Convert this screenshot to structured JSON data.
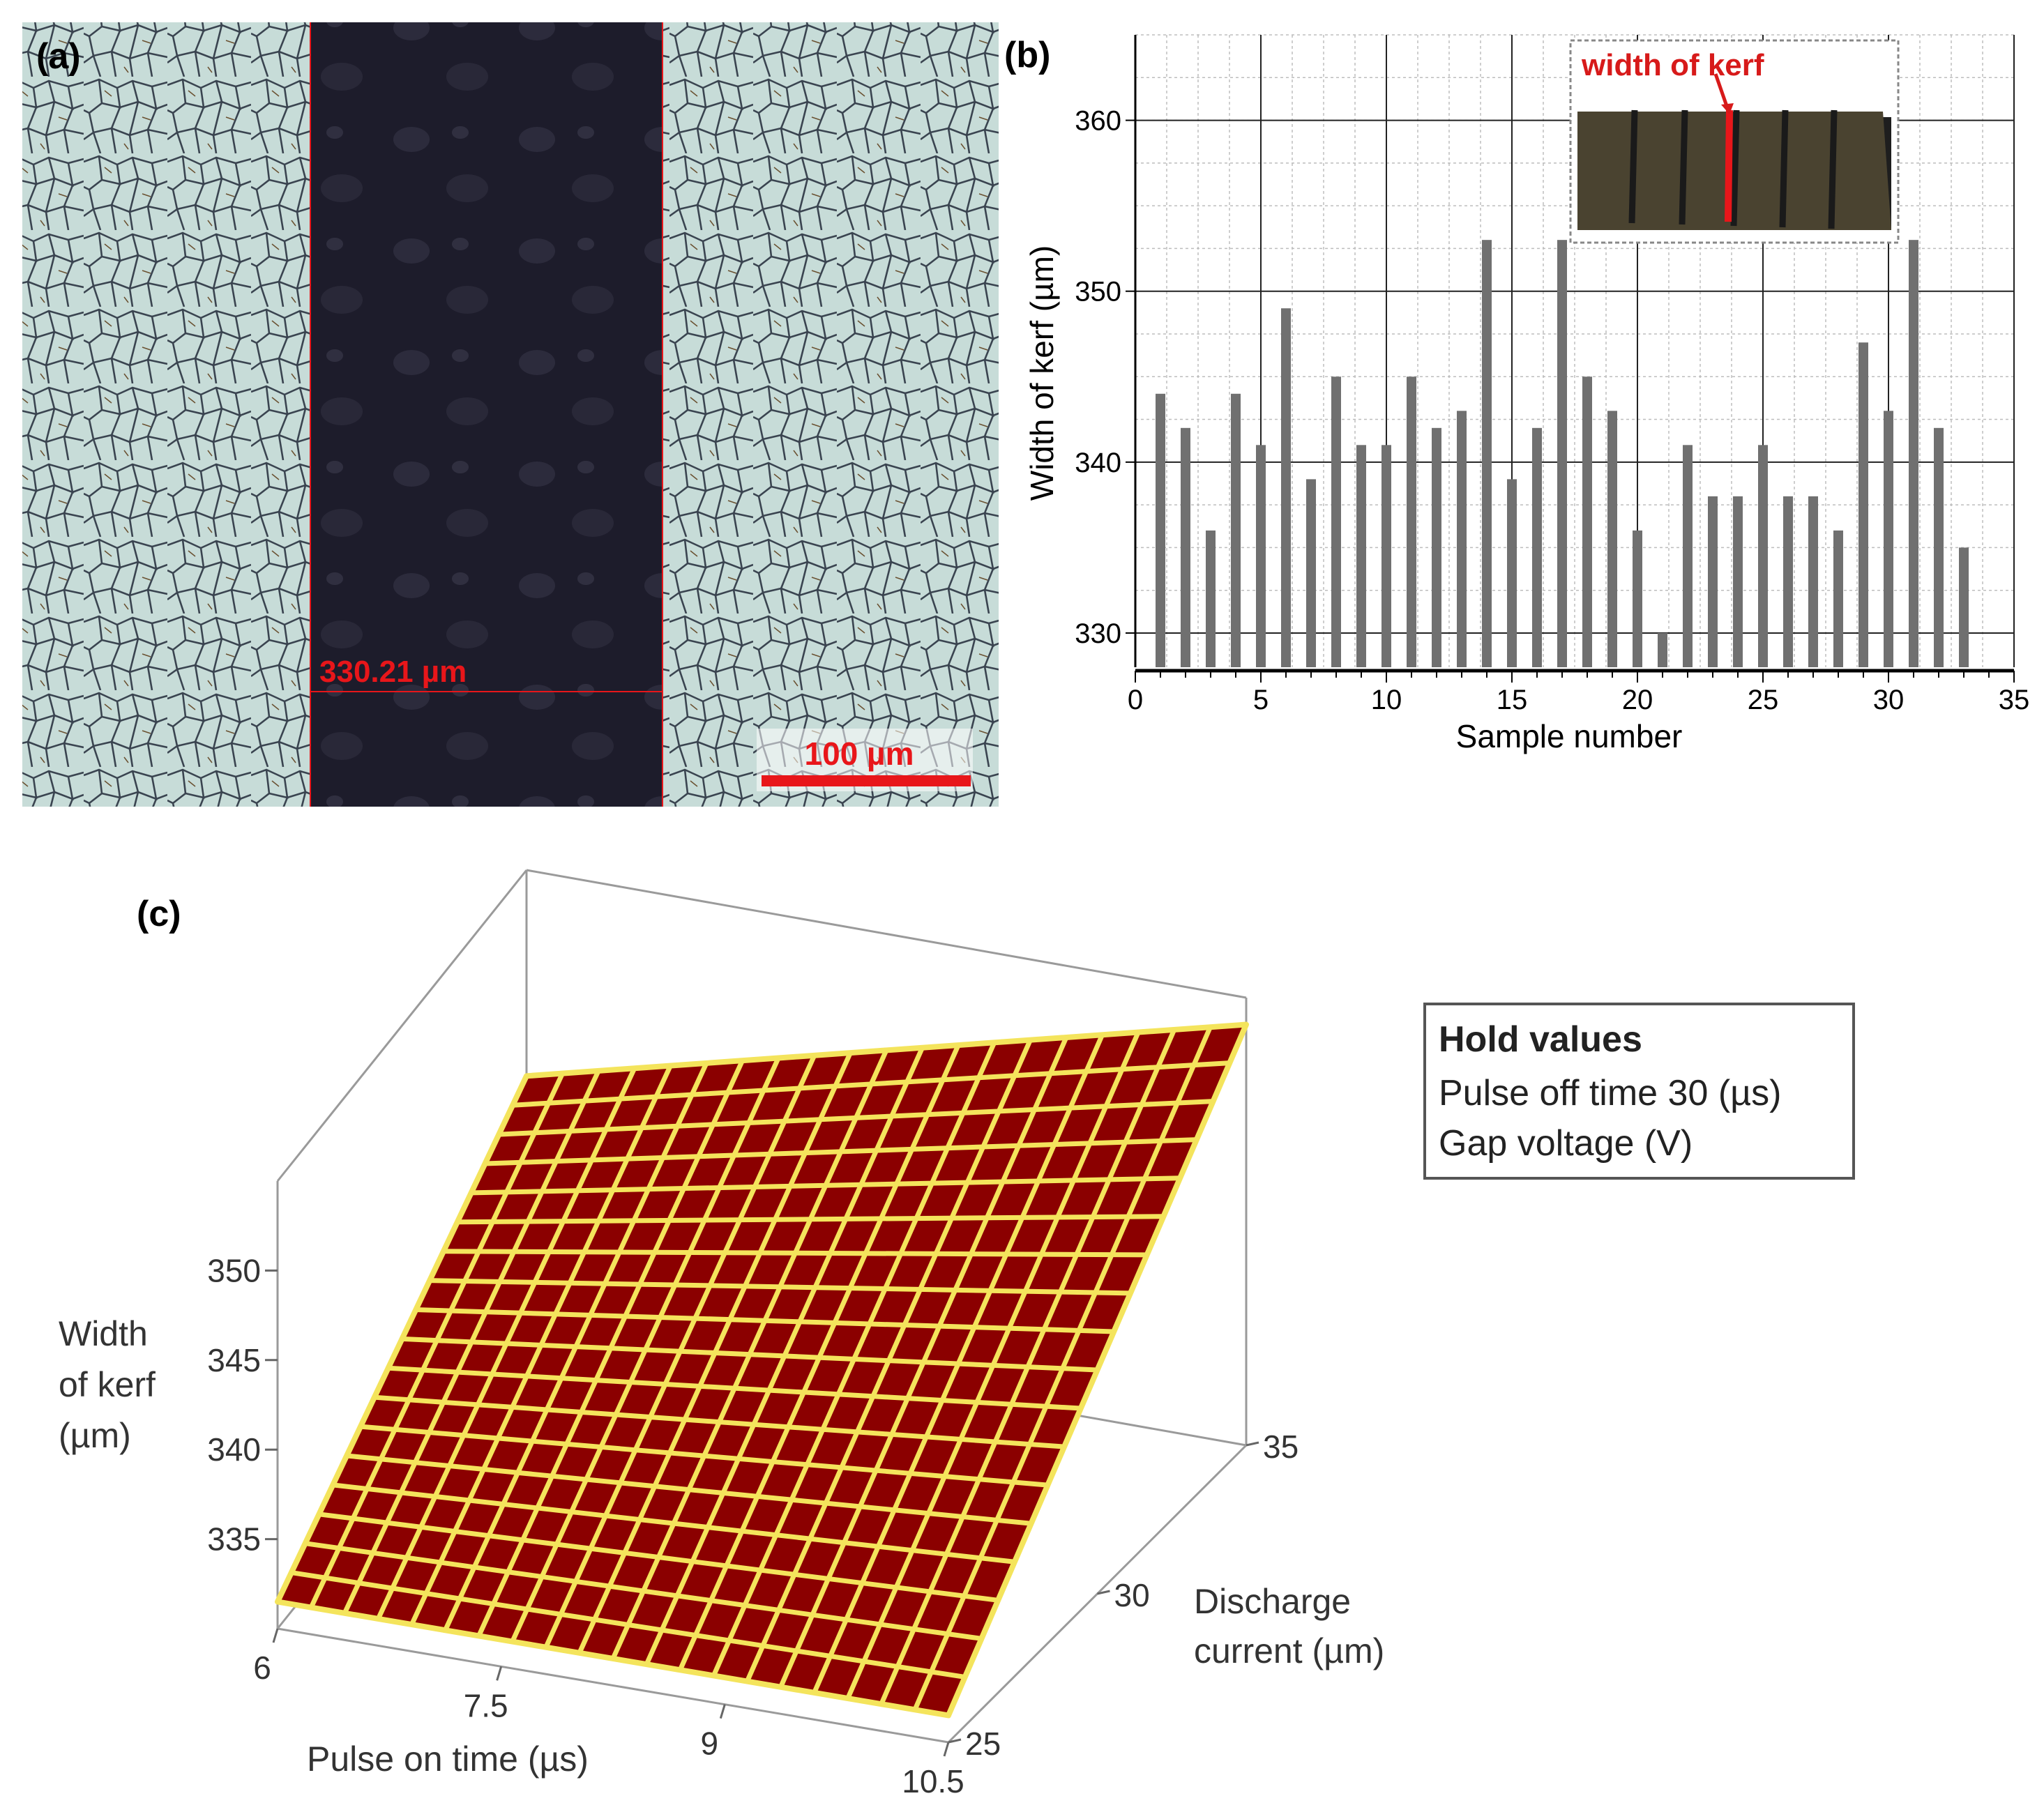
{
  "panels": {
    "a": {
      "label": "(a)",
      "measurement_label": "330.21 µm",
      "scale_bar_label": "100 µm",
      "colors": {
        "background_grain": "#c7dcd8",
        "kerf": "#1d1c2b",
        "annotation": "#e8161a"
      }
    },
    "b": {
      "label": "(b)",
      "inset_label": "width of kerf"
    },
    "c": {
      "label": "(c)",
      "legend": {
        "title": "Hold values",
        "items": [
          "Pulse off time 30 (µs)",
          "Gap voltage (V)"
        ]
      },
      "colors": {
        "surface_fill": "#8b0000",
        "surface_grid": "#f4e45c"
      }
    }
  },
  "chart_data": [
    {
      "type": "bar",
      "xlabel": "Sample number",
      "ylabel": "Width of kerf (µm)",
      "xlim": [
        0,
        35
      ],
      "ylim": [
        328,
        365
      ],
      "x_ticks": [
        0,
        5,
        10,
        15,
        20,
        25,
        30,
        35
      ],
      "y_ticks": [
        330,
        340,
        350,
        360
      ],
      "grid": true,
      "bar_color": "#707070",
      "x": [
        1,
        2,
        3,
        4,
        5,
        6,
        7,
        8,
        9,
        10,
        11,
        12,
        13,
        14,
        15,
        16,
        17,
        18,
        19,
        20,
        21,
        22,
        23,
        24,
        25,
        26,
        27,
        28,
        29,
        30,
        31,
        32,
        33
      ],
      "values": [
        344,
        342,
        336,
        344,
        341,
        349,
        339,
        345,
        341,
        341,
        345,
        342,
        343,
        353,
        339,
        342,
        353,
        345,
        343,
        336,
        330,
        341,
        338,
        338,
        341,
        338,
        338,
        336,
        347,
        343,
        353,
        342,
        335
      ]
    },
    {
      "type": "surface",
      "zlabel": "Width of kerf (µm)",
      "xlabel": "Pulse on time (µs)",
      "ylabel": "Discharge current (µm)",
      "x_ticks": [
        6,
        7.5,
        9,
        10.5
      ],
      "y_ticks": [
        25,
        30,
        35
      ],
      "z_ticks": [
        335,
        340,
        345,
        350
      ],
      "xlim": [
        6,
        10.5
      ],
      "ylim": [
        25,
        35
      ],
      "zlim": [
        330,
        355
      ],
      "corner_values": {
        "x_min_y_min": 331.5,
        "x_max_y_min": 331.5,
        "x_min_y_max": 343.5,
        "x_max_y_max": 353.5
      },
      "grid_cells": [
        20,
        18
      ]
    }
  ]
}
